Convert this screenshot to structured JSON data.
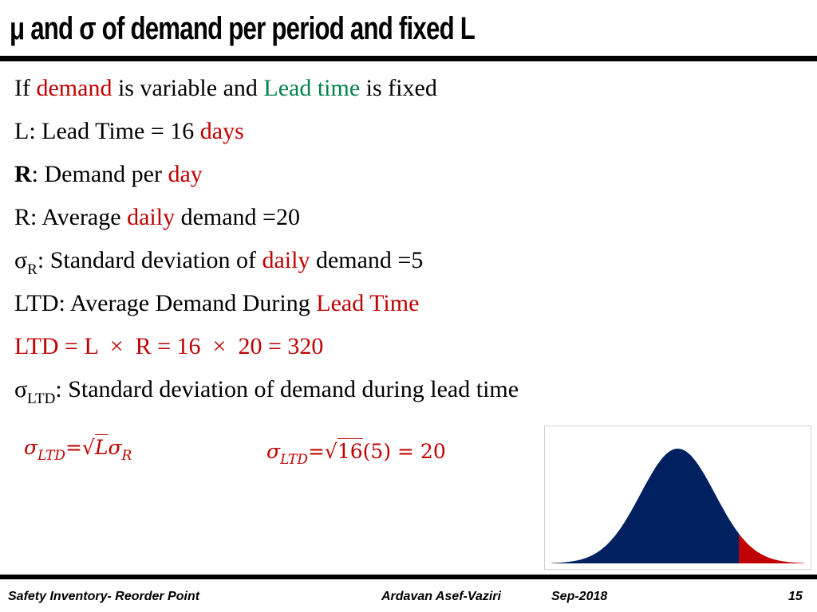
{
  "header": {
    "title": "μ and σ of demand per period and fixed L"
  },
  "body": {
    "line1": {
      "p1": "If ",
      "p2": "demand",
      "p3": " is variable and ",
      "p4": "Lead time",
      "p5": " is fixed"
    },
    "line2": {
      "p1": "L: Lead Time = 16 ",
      "p2": "days"
    },
    "line3": {
      "p1": "R",
      "p2": ": Demand per ",
      "p3": "day"
    },
    "line4": {
      "p1": "R: Average ",
      "p2": "daily",
      "p3": " demand =20"
    },
    "line5": {
      "sym": "σ",
      "sub": "R",
      "p1": ": Standard deviation of ",
      "p2": "daily",
      "p3": " demand =5"
    },
    "line6": {
      "p1": "LTD: Average Demand During ",
      "p2": "Lead Time"
    },
    "line7": {
      "p1": "LTD = L  ×  R = 16  ×  20 = 320"
    },
    "line8": {
      "sym": "σ",
      "sub": "LTD",
      "p1": ": Standard deviation of demand during lead time"
    }
  },
  "formulas": {
    "general": {
      "sym": "σ",
      "sub": "LTD",
      "eq": "=",
      "root": "√",
      "arg": "L",
      "sym2": "σ",
      "sub2": "R"
    },
    "numeric": {
      "sym": "σ",
      "sub": "LTD",
      "eq": "=",
      "root": "√",
      "arg": "16",
      "rest": "(5) = 20"
    }
  },
  "chart_data": {
    "type": "area",
    "title": "",
    "description_series": [
      {
        "name": "body",
        "color": "#002060",
        "x_range": [
          -3.4,
          1.65
        ]
      },
      {
        "name": "tail",
        "color": "#c00000",
        "x_range": [
          1.65,
          3.4
        ]
      }
    ],
    "mean": 0,
    "std": 1,
    "tail_start_z": 1.65
  },
  "footer": {
    "left": "Safety Inventory- Reorder Point",
    "author": "Ardavan Asef-Vaziri",
    "date": "Sep-2018",
    "page": "15"
  },
  "colors": {
    "accent_red": "#c00000",
    "accent_green": "#00834a",
    "navy": "#002060"
  }
}
